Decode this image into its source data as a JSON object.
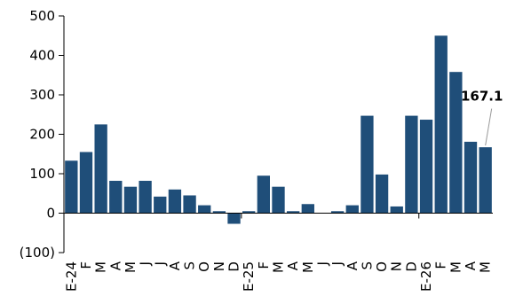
{
  "chart_data": {
    "type": "bar",
    "categories": [
      "E-24",
      "F",
      "M",
      "A",
      "M",
      "J",
      "J",
      "A",
      "S",
      "O",
      "N",
      "D",
      "E-25",
      "F",
      "M",
      "A",
      "M",
      "J",
      "J",
      "A",
      "S",
      "O",
      "N",
      "D",
      "E-26",
      "F",
      "M",
      "A",
      "M"
    ],
    "values": [
      133,
      155,
      225,
      82,
      67,
      82,
      42,
      60,
      45,
      20,
      5,
      -27,
      5,
      95,
      67,
      5,
      23,
      0,
      5,
      20,
      247,
      98,
      17,
      247,
      237,
      450,
      358,
      181,
      167.1
    ],
    "ylim": [
      -100,
      500
    ],
    "yticks": [
      -100,
      0,
      100,
      200,
      300,
      400,
      500
    ],
    "ytick_labels": [
      "(100)",
      "0",
      "100",
      "200",
      "300",
      "400",
      "500"
    ],
    "title": "",
    "xlabel": "",
    "ylabel": "",
    "grid": false,
    "bar_color": "#1f4e79",
    "annotation": {
      "index": 28,
      "text": "167.1"
    }
  }
}
